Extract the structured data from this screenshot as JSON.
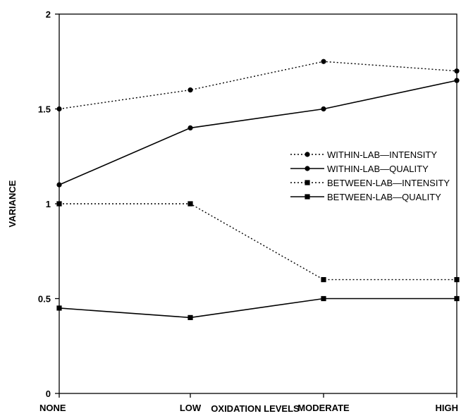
{
  "chart_data": {
    "type": "line",
    "xlabel": "OXIDATION LEVELS",
    "ylabel": "VARIANCE",
    "categories": [
      "NONE",
      "LOW",
      "MODERATE",
      "HIGH"
    ],
    "ylim": [
      0,
      2
    ],
    "yticks": [
      "0",
      "0.5",
      "1",
      "1.5",
      "2"
    ],
    "grid": false,
    "legend_position": "right-middle",
    "series": [
      {
        "name": "WITHIN-LAB—INTENSITY",
        "values": [
          1.5,
          1.6,
          1.75,
          1.7
        ],
        "line": "dotted",
        "marker": "circle",
        "color": "#000000"
      },
      {
        "name": "WITHIN-LAB—QUALITY",
        "values": [
          1.1,
          1.4,
          1.5,
          1.65
        ],
        "line": "solid",
        "marker": "circle",
        "color": "#000000"
      },
      {
        "name": "BETWEEN-LAB—INTENSITY",
        "values": [
          1.0,
          1.0,
          0.6,
          0.6
        ],
        "line": "dotted",
        "marker": "square",
        "color": "#000000"
      },
      {
        "name": "BETWEEN-LAB—QUALITY",
        "values": [
          0.45,
          0.4,
          0.5,
          0.5
        ],
        "line": "solid",
        "marker": "square",
        "color": "#000000"
      }
    ]
  }
}
